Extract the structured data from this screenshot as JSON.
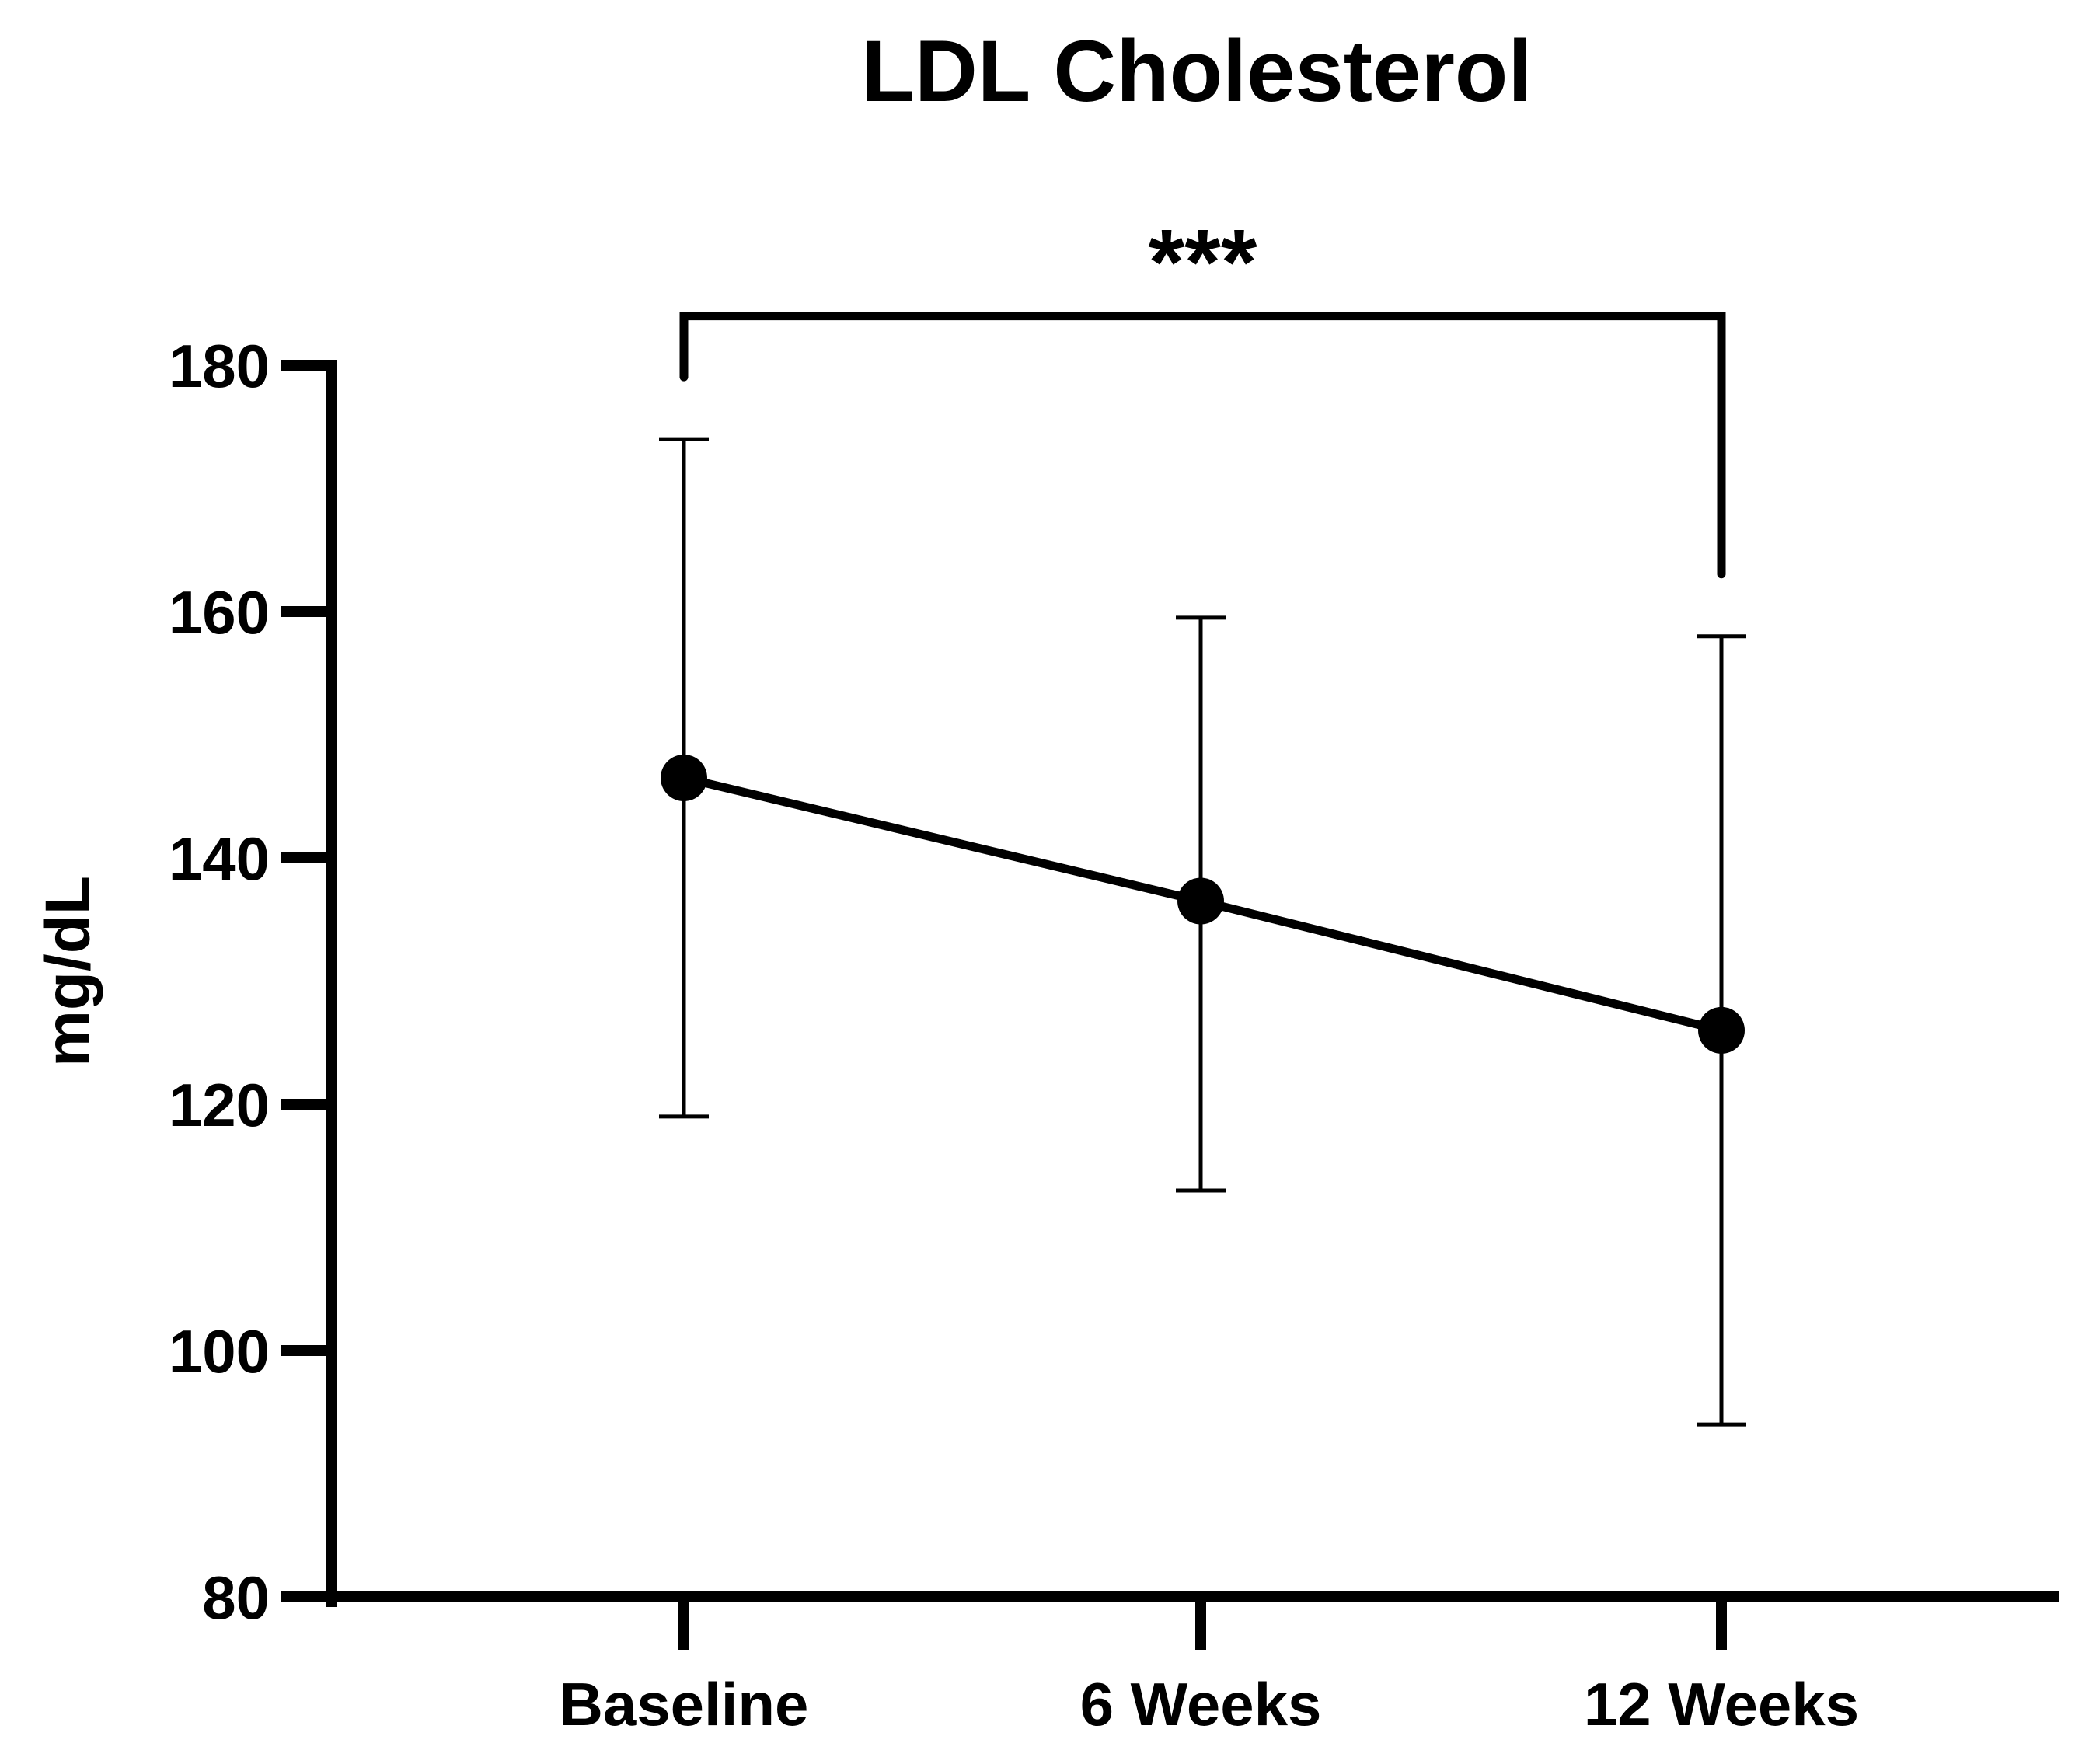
{
  "chart_data": {
    "type": "line",
    "title": "LDL Cholesterol",
    "xlabel": "",
    "ylabel": "mg/dL",
    "categories": [
      "Baseline",
      "6 Weeks",
      "12 Weeks"
    ],
    "series": [
      {
        "name": "LDL Cholesterol",
        "values": [
          146.5,
          136.5,
          126
        ],
        "error_upper": [
          174,
          159.5,
          158
        ],
        "error_lower": [
          119,
          113,
          94
        ]
      }
    ],
    "ylim": [
      80,
      180
    ],
    "yticks": [
      "80",
      "100",
      "120",
      "140",
      "160",
      "180"
    ],
    "grid": false,
    "significance": {
      "from": "Baseline",
      "to": "12 Weeks",
      "label": "***",
      "level": 184
    },
    "colors": {
      "line": "#000000",
      "marker": "#000000",
      "axis": "#000000"
    }
  }
}
